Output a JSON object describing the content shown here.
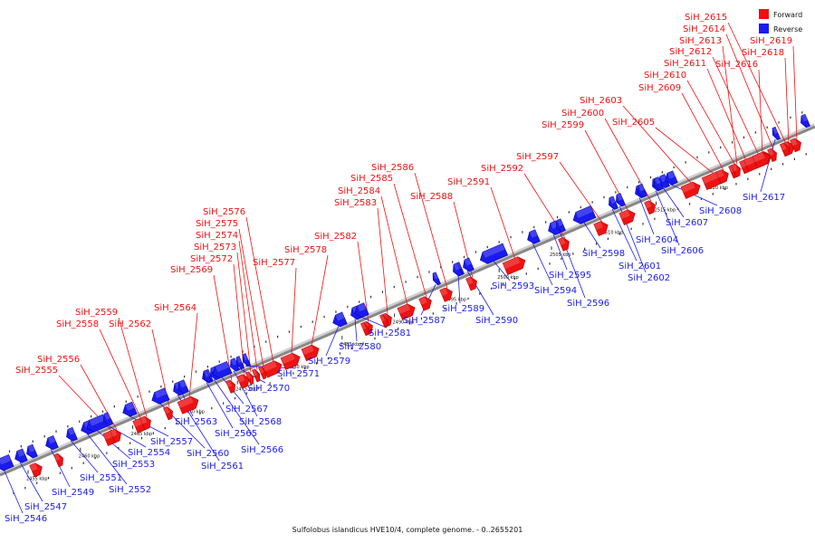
{
  "caption": "Sulfolobus islandicus HVE10/4, complete genome. - 0..2655201",
  "legend": [
    {
      "label": "Forward",
      "color": "#ee1111"
    },
    {
      "label": "Reverse",
      "color": "#1a1aee"
    }
  ],
  "colors": {
    "forward": "#ee1111",
    "reverse": "#1a1aee",
    "axis": "#888888"
  },
  "ticks": [
    {
      "kbp": 2455,
      "label": "2455 kbp"
    },
    {
      "kbp": 2460,
      "label": "2460 kbp"
    },
    {
      "kbp": 2465,
      "label": "2465 kbp"
    },
    {
      "kbp": 2470,
      "label": "2470 kbp"
    },
    {
      "kbp": 2475,
      "label": "2475 kbp"
    },
    {
      "kbp": 2480,
      "label": "2480 kbp"
    },
    {
      "kbp": 2485,
      "label": "2485 kbp"
    },
    {
      "kbp": 2490,
      "label": "2490 kbp"
    },
    {
      "kbp": 2495,
      "label": "2495 kbp"
    },
    {
      "kbp": 2500,
      "label": "2500 kbp"
    },
    {
      "kbp": 2505,
      "label": "2505 kbp"
    },
    {
      "kbp": 2510,
      "label": "2510 kbp"
    },
    {
      "kbp": 2515,
      "label": "2515 kbp"
    },
    {
      "kbp": 2520,
      "label": "2520 kbp"
    }
  ],
  "forward_genes": [
    {
      "name": "SiH_2555"
    },
    {
      "name": "SiH_2556"
    },
    {
      "name": "SiH_2558"
    },
    {
      "name": "SiH_2559"
    },
    {
      "name": "SiH_2562"
    },
    {
      "name": "SiH_2564"
    },
    {
      "name": "SiH_2569"
    },
    {
      "name": "SiH_2572"
    },
    {
      "name": "SiH_2573"
    },
    {
      "name": "SiH_2574"
    },
    {
      "name": "SiH_2575"
    },
    {
      "name": "SiH_2576"
    },
    {
      "name": "SiH_2577"
    },
    {
      "name": "SiH_2578"
    },
    {
      "name": "SiH_2582"
    },
    {
      "name": "SiH_2583"
    },
    {
      "name": "SiH_2584"
    },
    {
      "name": "SiH_2585"
    },
    {
      "name": "SiH_2586"
    },
    {
      "name": "SiH_2588"
    },
    {
      "name": "SiH_2591"
    },
    {
      "name": "SiH_2592"
    },
    {
      "name": "SiH_2597"
    },
    {
      "name": "SiH_2599"
    },
    {
      "name": "SiH_2600"
    },
    {
      "name": "SiH_2603"
    },
    {
      "name": "SiH_2605"
    },
    {
      "name": "SiH_2609"
    },
    {
      "name": "SiH_2610"
    },
    {
      "name": "SiH_2611"
    },
    {
      "name": "SiH_2612"
    },
    {
      "name": "SiH_2613"
    },
    {
      "name": "SiH_2614"
    },
    {
      "name": "SiH_2615"
    },
    {
      "name": "SiH_2616"
    },
    {
      "name": "SiH_2618"
    },
    {
      "name": "SiH_2619"
    }
  ],
  "reverse_genes": [
    {
      "name": "SiH_2546"
    },
    {
      "name": "SiH_2547"
    },
    {
      "name": "SiH_2549"
    },
    {
      "name": "SiH_2551"
    },
    {
      "name": "SiH_2552"
    },
    {
      "name": "SiH_2553"
    },
    {
      "name": "SiH_2554"
    },
    {
      "name": "SiH_2557"
    },
    {
      "name": "SiH_2560"
    },
    {
      "name": "SiH_2561"
    },
    {
      "name": "SiH_2563"
    },
    {
      "name": "SiH_2565"
    },
    {
      "name": "SiH_2566"
    },
    {
      "name": "SiH_2567"
    },
    {
      "name": "SiH_2568"
    },
    {
      "name": "SiH_2570"
    },
    {
      "name": "SiH_2571"
    },
    {
      "name": "SiH_2579"
    },
    {
      "name": "SiH_2580"
    },
    {
      "name": "SiH_2581"
    },
    {
      "name": "SiH_2587"
    },
    {
      "name": "SiH_2589"
    },
    {
      "name": "SiH_2590"
    },
    {
      "name": "SiH_2593"
    },
    {
      "name": "SiH_2594"
    },
    {
      "name": "SiH_2595"
    },
    {
      "name": "SiH_2596"
    },
    {
      "name": "SiH_2598"
    },
    {
      "name": "SiH_2601"
    },
    {
      "name": "SiH_2602"
    },
    {
      "name": "SiH_2604"
    },
    {
      "name": "SiH_2606"
    },
    {
      "name": "SiH_2607"
    },
    {
      "name": "SiH_2608"
    },
    {
      "name": "SiH_2617"
    }
  ]
}
